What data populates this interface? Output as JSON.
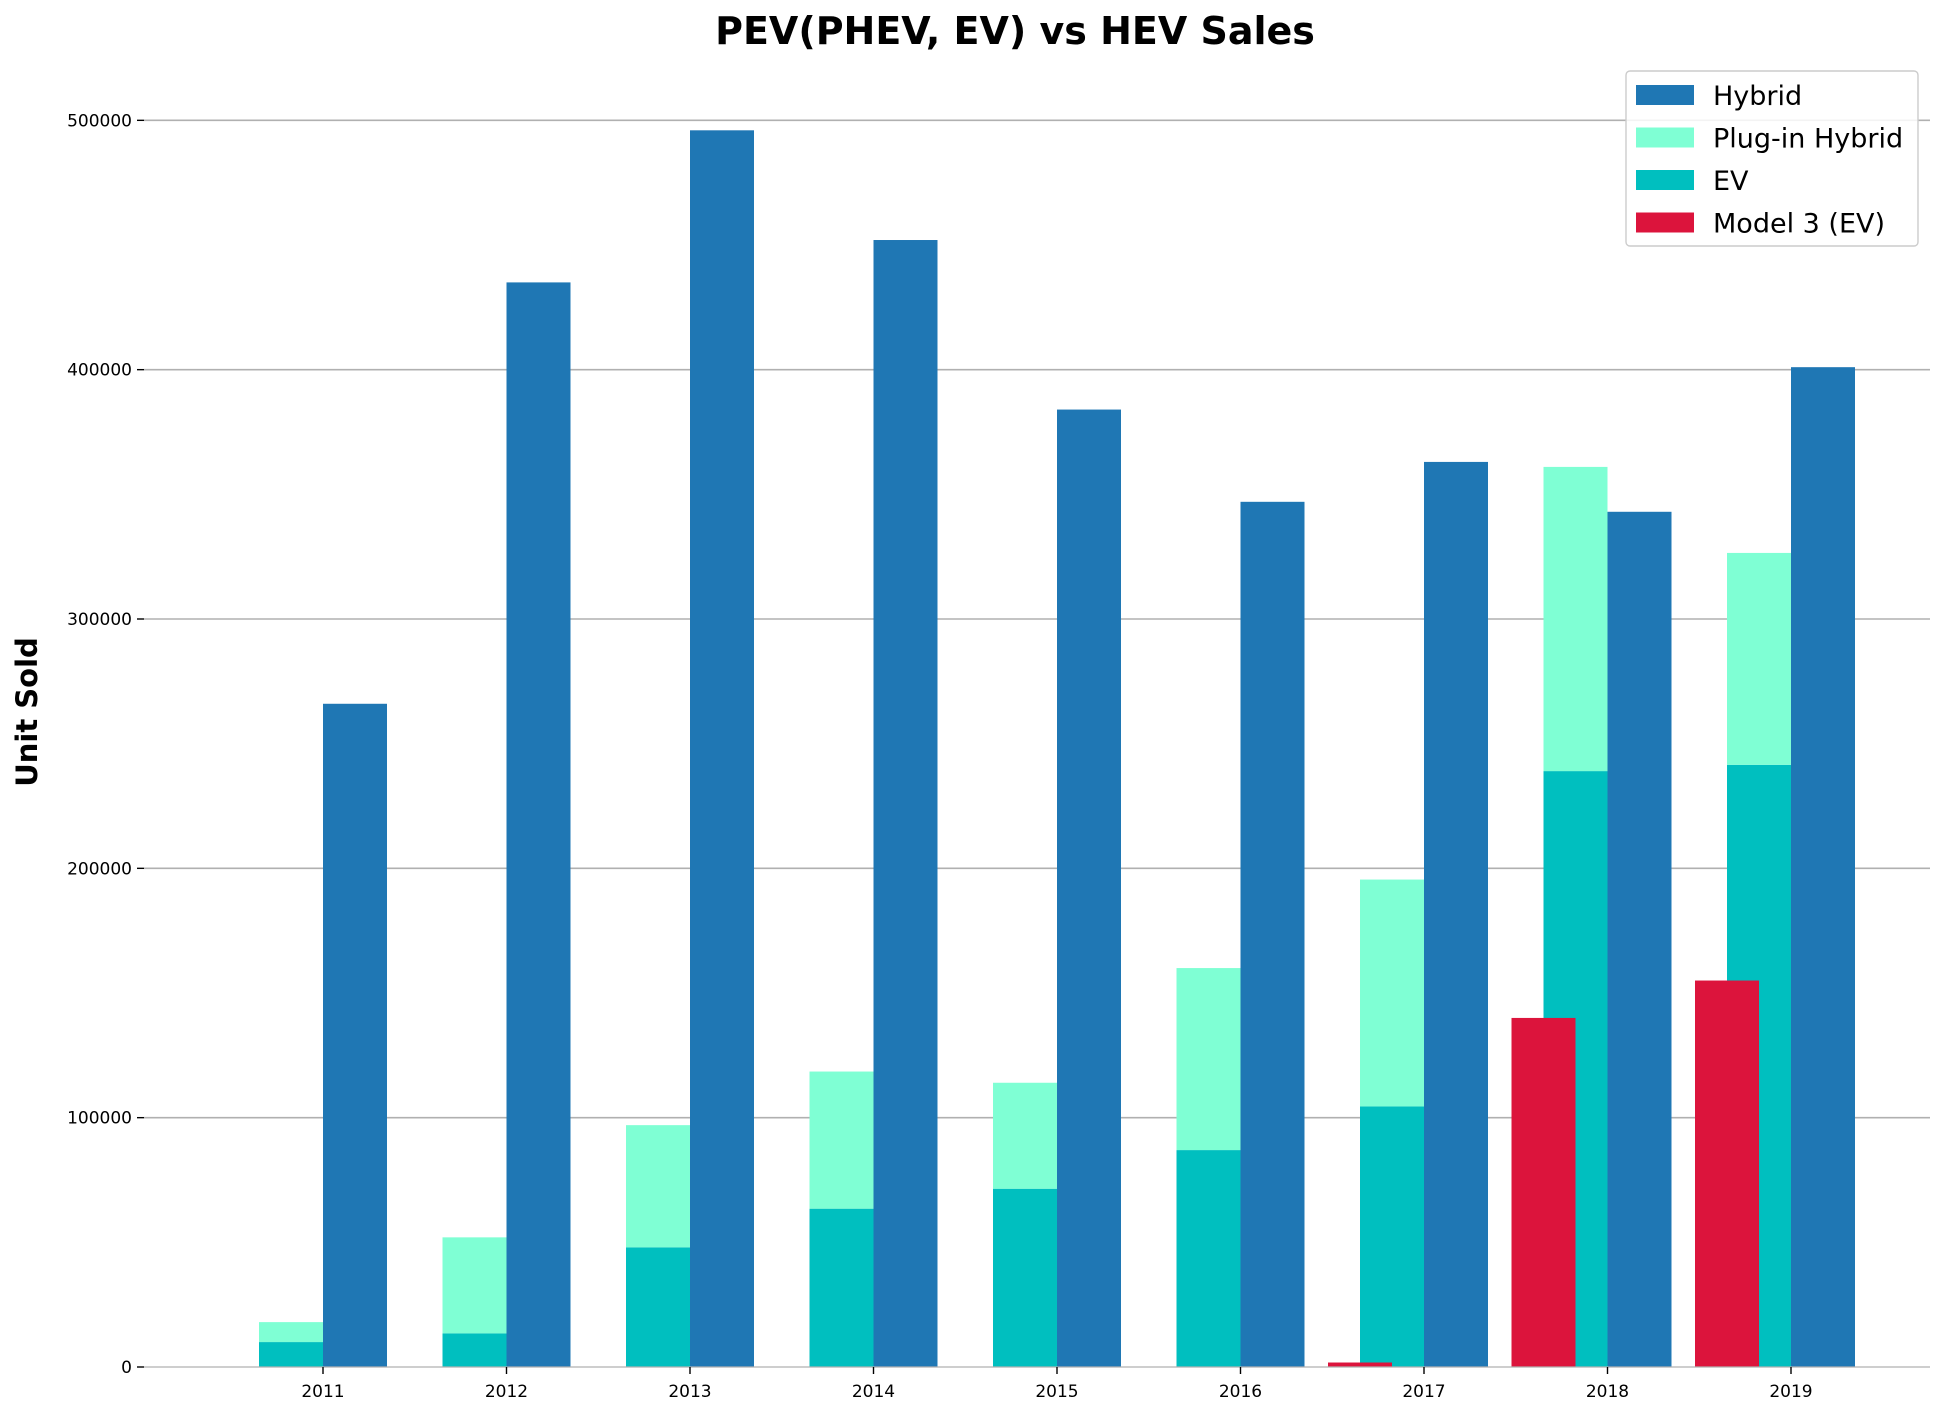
{
  "chart_data": {
    "type": "bar",
    "title": "PEV(PHEV, EV) vs HEV Sales",
    "xlabel": "",
    "ylabel": "Unit Sold",
    "categories": [
      "2011",
      "2012",
      "2013",
      "2014",
      "2015",
      "2016",
      "2017",
      "2018",
      "2019"
    ],
    "ylim": [
      0,
      525000
    ],
    "yticks": [
      0,
      100000,
      200000,
      300000,
      400000,
      500000
    ],
    "ytick_labels": [
      "0",
      "100000",
      "200000",
      "300000",
      "400000",
      "500000"
    ],
    "grid": "horizontal",
    "legend_position": "top-right",
    "series": [
      {
        "name": "Hybrid",
        "color": "#1f77b4",
        "values": [
          266000,
          435000,
          496000,
          452000,
          384000,
          347000,
          363000,
          343000,
          401000
        ]
      },
      {
        "name": "Plug-in Hybrid",
        "color": "#7fffd4",
        "values": [
          8000,
          38500,
          49000,
          55000,
          42500,
          73000,
          91000,
          122000,
          85000
        ]
      },
      {
        "name": "EV",
        "color": "#00bfbf",
        "values": [
          10000,
          13500,
          48000,
          63500,
          71500,
          87000,
          104500,
          239000,
          241500
        ]
      },
      {
        "name": "Model 3 (EV)",
        "color": "#dc143c",
        "values": [
          0,
          0,
          0,
          0,
          0,
          0,
          1800,
          140000,
          155000
        ]
      }
    ]
  }
}
